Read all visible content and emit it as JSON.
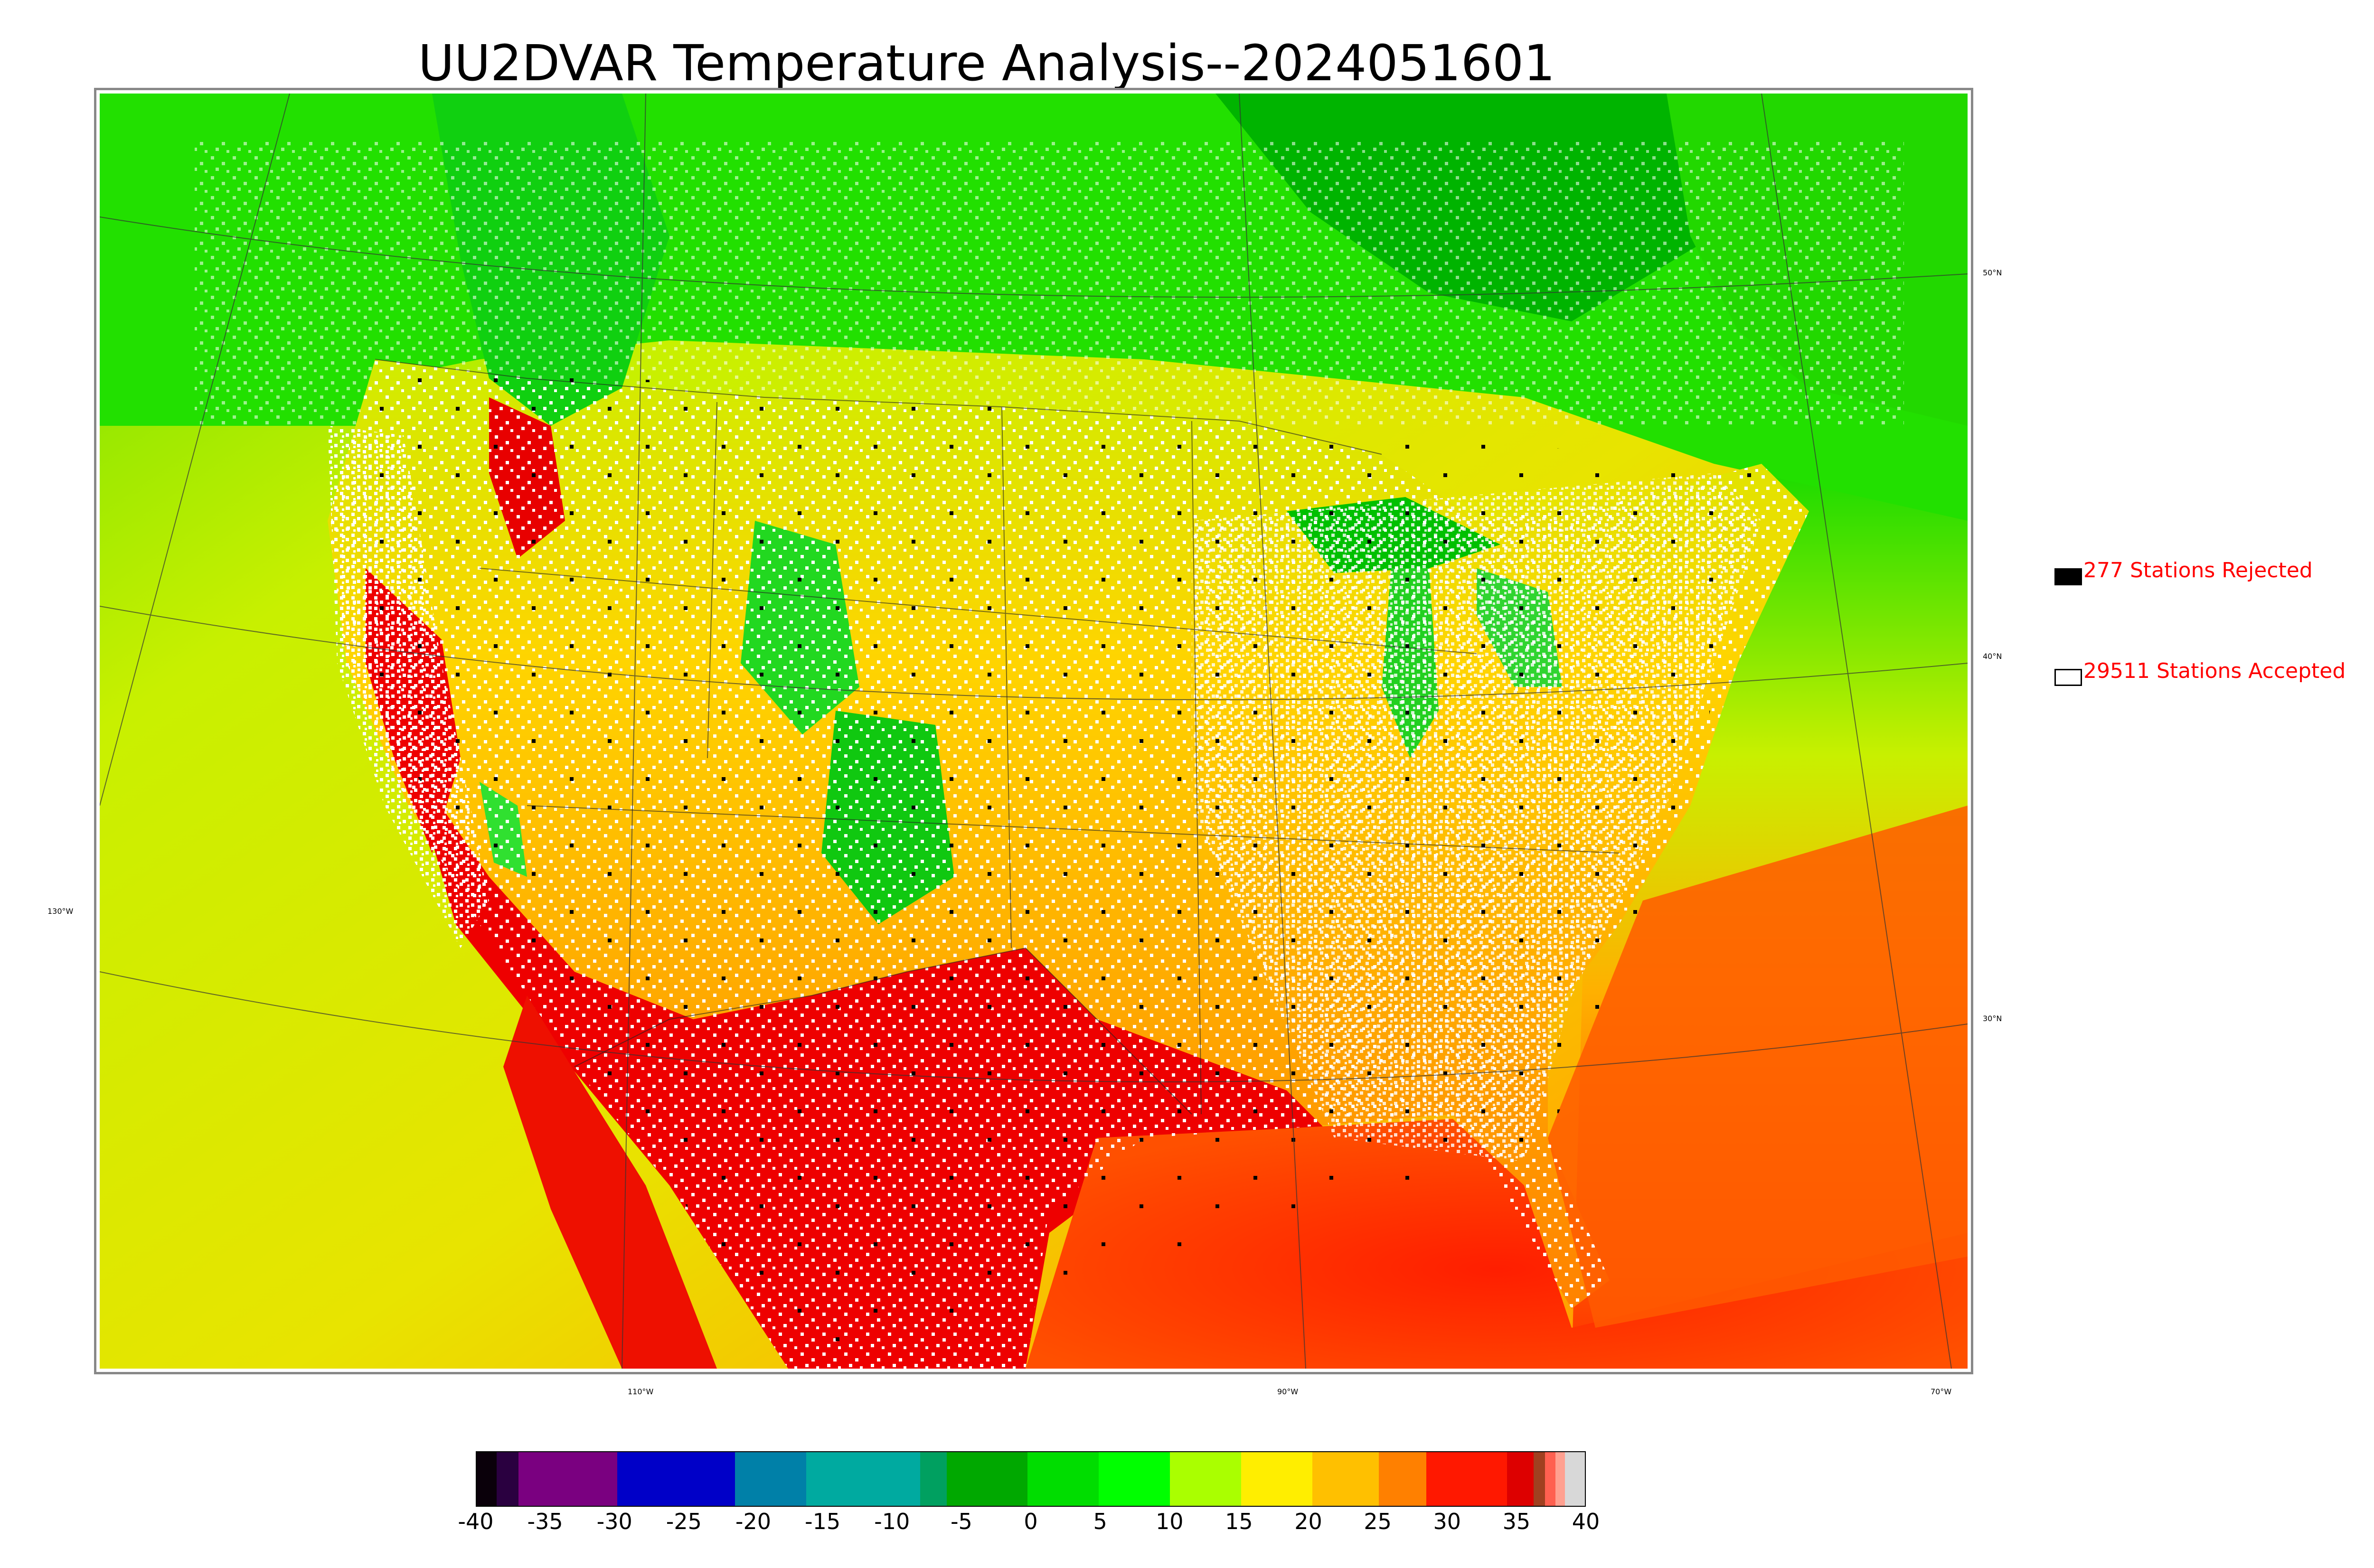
{
  "title": "UU2DVAR Temperature Analysis--2024051601",
  "legend": {
    "rejected_label": "277 Stations Rejected",
    "accepted_label": "29511 Stations Accepted",
    "rejected_color": "#000000",
    "accepted_color": "#ffffff",
    "text_color": "#ff0000"
  },
  "graticule": {
    "lat_labels": [
      "50°N",
      "40°N",
      "30°N"
    ],
    "lon_labels": [
      "110°W",
      "90°W",
      "70°W"
    ],
    "left_label": "130°W"
  },
  "colorbar": {
    "ticks": [
      "-40",
      "-35",
      "-30",
      "-25",
      "-20",
      "-15",
      "-10",
      "-5",
      "0",
      "5",
      "10",
      "15",
      "20",
      "25",
      "30",
      "35",
      "40"
    ],
    "min": -40,
    "max": 40,
    "units": ""
  },
  "colors": {
    "cold_sea": "#d8f000",
    "warm_sea": "#ff2a00",
    "canada_green": "#00dd00",
    "deep_green": "#00b000",
    "land_yellow": "#ffd800",
    "land_orange": "#ffa000",
    "desert_red": "#ee0000",
    "mountain_green": "#20e020"
  }
}
